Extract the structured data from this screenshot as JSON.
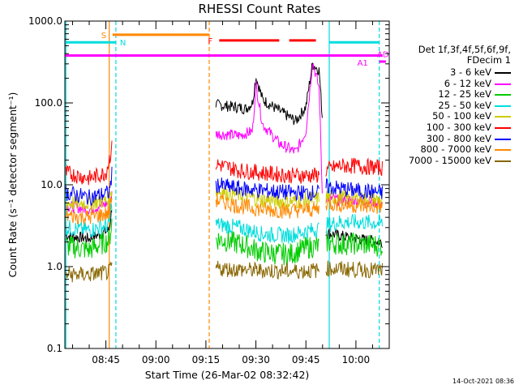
{
  "chart_data": {
    "type": "line",
    "title": "RHESSI Count Rates",
    "xlabel": "Start Time (26-Mar-02 08:32:42)",
    "ylabel": "Count Rate (s⁻¹ detector segment⁻¹)",
    "yscale": "log",
    "ylim": [
      0.1,
      1000
    ],
    "xlim": [
      "08:32:42",
      "10:10:00"
    ],
    "ytick_labels": [
      "0.1",
      "1.0",
      "10.0",
      "100.0",
      "1000.0"
    ],
    "xtick_labels": [
      "08:45",
      "09:00",
      "09:15",
      "09:30",
      "09:45",
      "10:00"
    ],
    "legend_header": [
      "Det 1f,3f,4f,5f,6f,9f,",
      "FDecim 1"
    ],
    "series": [
      {
        "name": "3 - 6 keV",
        "color": "#000000",
        "segments": [
          {
            "t": [
              "08:33",
              "08:40",
              "08:46",
              "08:47"
            ],
            "values": [
              2.4,
              2.2,
              2.8,
              6
            ]
          },
          {
            "t": [
              "09:18",
              "09:25",
              "09:27",
              "09:29",
              "09:30",
              "09:32",
              "09:37",
              "09:42",
              "09:45",
              "09:47",
              "09:49",
              "09:50"
            ],
            "values": [
              95,
              88,
              85,
              100,
              210,
              110,
              80,
              60,
              90,
              300,
              250,
              60
            ]
          },
          {
            "t": [
              "09:51",
              "09:55",
              "10:00",
              "10:08"
            ],
            "values": [
              2.6,
              2.4,
              2.2,
              2.0
            ]
          }
        ]
      },
      {
        "name": "6 - 12 keV",
        "color": "#ff00ff",
        "segments": [
          {
            "t": [
              "08:33",
              "08:40",
              "08:46",
              "08:47"
            ],
            "values": [
              5.5,
              5,
              6,
              8
            ]
          },
          {
            "t": [
              "09:18",
              "09:25",
              "09:29",
              "09:30",
              "09:32",
              "09:37",
              "09:42",
              "09:45",
              "09:47",
              "09:49",
              "09:50"
            ],
            "values": [
              42,
              40,
              45,
              170,
              55,
              32,
              25,
              45,
              320,
              150,
              6
            ]
          },
          {
            "t": [
              "09:51",
              "09:55",
              "10:00",
              "10:08"
            ],
            "values": [
              7,
              6.5,
              6.5,
              6.0
            ]
          }
        ]
      },
      {
        "name": "12 - 25 keV",
        "color": "#00cc00",
        "segments": [
          {
            "t": [
              "08:33",
              "08:40",
              "08:46",
              "08:47"
            ],
            "values": [
              1.8,
              1.6,
              2.1,
              4
            ]
          },
          {
            "t": [
              "09:18",
              "09:25",
              "09:32",
              "09:40",
              "09:45",
              "09:49"
            ],
            "values": [
              2.2,
              1.9,
              1.5,
              1.4,
              1.7,
              1.8
            ]
          },
          {
            "t": [
              "09:51",
              "09:55",
              "10:00",
              "10:08"
            ],
            "values": [
              2.0,
              1.9,
              1.9,
              1.8
            ]
          }
        ]
      },
      {
        "name": "25 - 50 keV",
        "color": "#00dddd",
        "segments": [
          {
            "t": [
              "08:33",
              "08:40",
              "08:46",
              "08:47"
            ],
            "values": [
              3.0,
              2.8,
              3.2,
              7
            ]
          },
          {
            "t": [
              "09:18",
              "09:25",
              "09:32",
              "09:40",
              "09:45",
              "09:49"
            ],
            "values": [
              3.3,
              3.0,
              2.5,
              2.4,
              2.7,
              2.9
            ]
          },
          {
            "t": [
              "09:51",
              "09:55",
              "10:00",
              "10:08"
            ],
            "values": [
              3.2,
              3.5,
              3.5,
              3.4
            ]
          }
        ]
      },
      {
        "name": "50 - 100 keV",
        "color": "#cccc00",
        "segments": [
          {
            "t": [
              "08:33",
              "08:40",
              "08:46",
              "08:47"
            ],
            "values": [
              6,
              6,
              6.5,
              10
            ]
          },
          {
            "t": [
              "09:18",
              "09:25",
              "09:32",
              "09:40",
              "09:45",
              "09:49"
            ],
            "values": [
              8.5,
              7.5,
              6.5,
              6.2,
              6.5,
              6.8
            ]
          },
          {
            "t": [
              "09:51",
              "09:55",
              "10:00",
              "10:08"
            ],
            "values": [
              7,
              7,
              6.8,
              6.5
            ]
          }
        ]
      },
      {
        "name": "100 - 300 keV",
        "color": "#ff0000",
        "segments": [
          {
            "t": [
              "08:33",
              "08:40",
              "08:45",
              "08:47"
            ],
            "values": [
              14,
              12,
              14,
              30
            ]
          },
          {
            "t": [
              "09:18",
              "09:25",
              "09:32",
              "09:40",
              "09:45",
              "09:49"
            ],
            "values": [
              18,
              15,
              14,
              13,
              13,
              13
            ]
          },
          {
            "t": [
              "09:51",
              "09:55",
              "10:00",
              "10:08"
            ],
            "values": [
              15,
              17,
              17,
              16
            ]
          }
        ]
      },
      {
        "name": "300 - 800 keV",
        "color": "#0000ff",
        "segments": [
          {
            "t": [
              "08:33",
              "08:40",
              "08:46",
              "08:47"
            ],
            "values": [
              8,
              7,
              8,
              15
            ]
          },
          {
            "t": [
              "09:18",
              "09:25",
              "09:32",
              "09:40",
              "09:45",
              "09:49"
            ],
            "values": [
              10,
              9,
              8.5,
              8,
              8,
              8
            ]
          },
          {
            "t": [
              "09:51",
              "09:55",
              "10:00",
              "10:08"
            ],
            "values": [
              9.5,
              9,
              8.5,
              8
            ]
          }
        ]
      },
      {
        "name": "800 - 7000 keV",
        "color": "#ff8800",
        "segments": [
          {
            "t": [
              "08:33",
              "08:40",
              "08:46",
              "08:47"
            ],
            "values": [
              4.2,
              4.0,
              4.5,
              8
            ]
          },
          {
            "t": [
              "09:18",
              "09:25",
              "09:32",
              "09:40",
              "09:45",
              "09:49"
            ],
            "values": [
              6.5,
              5.5,
              5,
              4.8,
              5,
              5
            ]
          },
          {
            "t": [
              "09:51",
              "09:55",
              "10:00",
              "10:08"
            ],
            "values": [
              6,
              5.8,
              5.6,
              5.3
            ]
          }
        ]
      },
      {
        "name": "7000 - 15000 keV",
        "color": "#886600",
        "segments": [
          {
            "t": [
              "08:33",
              "08:40",
              "08:46",
              "08:47"
            ],
            "values": [
              0.8,
              0.8,
              0.85,
              1.0
            ]
          },
          {
            "t": [
              "09:18",
              "09:30",
              "09:40",
              "09:49"
            ],
            "values": [
              0.95,
              0.9,
              0.88,
              0.9
            ]
          },
          {
            "t": [
              "09:51",
              "10:00",
              "10:08"
            ],
            "values": [
              0.95,
              0.92,
              0.9
            ]
          }
        ]
      }
    ],
    "vertical_markers": [
      {
        "t": "08:33",
        "color": "#00dddd",
        "style": "solid"
      },
      {
        "t": "08:46",
        "color": "#ff8800",
        "style": "solid"
      },
      {
        "t": "08:48",
        "color": "#00dddd",
        "style": "dashed"
      },
      {
        "t": "09:16",
        "color": "#ff8800",
        "style": "dashed"
      },
      {
        "t": "09:52",
        "color": "#00dddd",
        "style": "solid"
      },
      {
        "t": "10:07",
        "color": "#00dddd",
        "style": "dashed"
      }
    ],
    "flag_bars": [
      {
        "label": "N",
        "color": "#00dddd",
        "level": 550,
        "spans": [
          [
            "08:33",
            "08:48"
          ],
          [
            "09:52",
            "10:07"
          ]
        ]
      },
      {
        "label": "S",
        "color": "#ff8800",
        "level": 680,
        "spans": [
          [
            "08:47",
            "09:16"
          ]
        ]
      },
      {
        "label": "F",
        "color": "#ff0000",
        "level": 580,
        "spans": [
          [
            "09:19",
            "09:37"
          ],
          [
            "09:40",
            "09:48"
          ]
        ]
      },
      {
        "label": "AD",
        "color": "#ff00ff",
        "level": 380,
        "spans": [
          [
            "08:32:42",
            "10:08"
          ]
        ]
      },
      {
        "label": "A1",
        "color": "#ff00ff",
        "level": 320,
        "spans": [
          [
            "10:07",
            "10:09"
          ]
        ]
      }
    ],
    "legend_position": "right"
  },
  "timestamp": "14-Oct-2021 08:36"
}
